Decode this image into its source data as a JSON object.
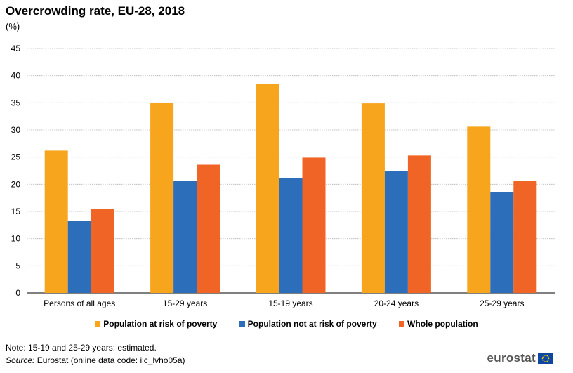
{
  "title": "Overcrowding rate, EU-28, 2018",
  "subtitle": "(%)",
  "note": "Note: 15-19 and 25-29 years: estimated.",
  "source_label": "Source:",
  "source_text": "Eurostat (online data code: ilc_lvho05a)",
  "logo_text": "eurostat",
  "chart_data": {
    "type": "bar",
    "categories": [
      "Persons of all ages",
      "15-29 years",
      "15-19 years",
      "20-24 years",
      "25-29 years"
    ],
    "series": [
      {
        "name": "Population at risk of poverty",
        "color": "#f7a51c",
        "values": [
          26.2,
          35.0,
          38.5,
          34.9,
          30.6
        ]
      },
      {
        "name": "Population not at risk of poverty",
        "color": "#2d6ebb",
        "values": [
          13.3,
          20.6,
          21.1,
          22.5,
          18.6
        ]
      },
      {
        "name": "Whole population",
        "color": "#f06525",
        "values": [
          15.5,
          23.6,
          24.9,
          25.3,
          20.6
        ]
      }
    ],
    "yticks": [
      0,
      5,
      10,
      15,
      20,
      25,
      30,
      35,
      40,
      45
    ],
    "ylim": [
      0,
      45
    ],
    "grid": true,
    "legend_position": "bottom"
  }
}
